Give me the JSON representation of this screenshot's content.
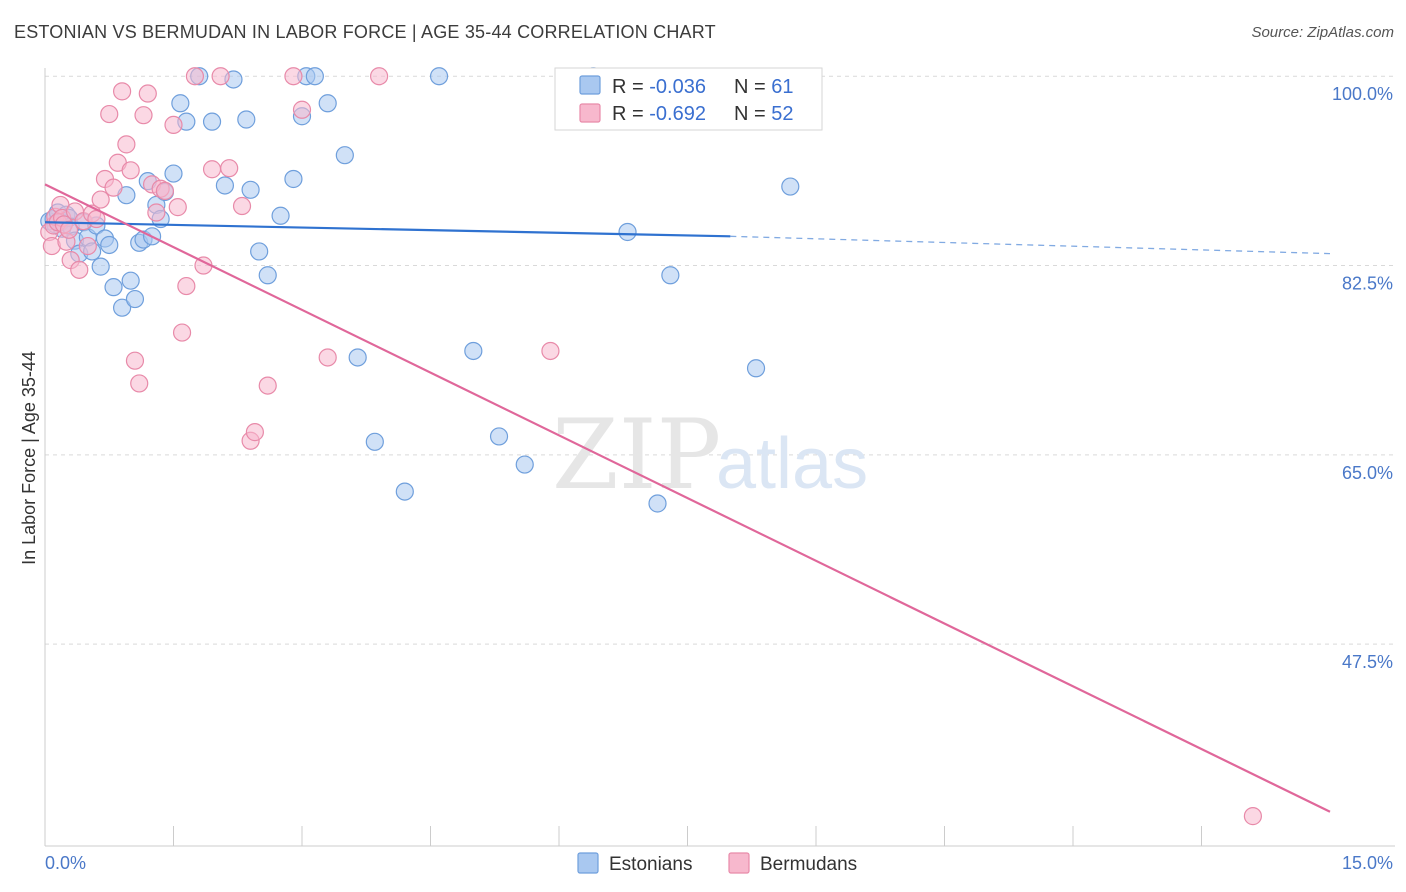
{
  "title": "ESTONIAN VS BERMUDAN IN LABOR FORCE | AGE 35-44 CORRELATION CHART",
  "source": "Source: ZipAtlas.com",
  "watermark": {
    "zip": "ZIP",
    "atlas": "atlas"
  },
  "colors": {
    "estonians_fill": "#a9c8f0",
    "estonians_stroke": "#6f9fdc",
    "estonians_line": "#2f72d0",
    "bermudans_fill": "#f7b8cd",
    "bermudans_stroke": "#e88aa9",
    "bermudans_line": "#e0679a",
    "tick_label": "#4a78c8",
    "grid": "#d9d9d9"
  },
  "legend": {
    "rows": [
      {
        "r_label": "R = ",
        "r_value": "-0.036",
        "n_label": "N = ",
        "n_value": "61"
      },
      {
        "r_label": "R = ",
        "r_value": "-0.692",
        "n_label": "N = ",
        "n_value": "52"
      }
    ]
  },
  "bottom_legend": [
    "Estonians",
    "Bermudans"
  ],
  "chart_data": {
    "type": "scatter",
    "xlabel": "",
    "ylabel": "In Labor Force | Age 35-44",
    "xlim": [
      0,
      15
    ],
    "ylim": [
      30.5,
      101.5
    ],
    "x_tick_labels": [
      {
        "value": 0,
        "label": "0.0%"
      },
      {
        "value": 15,
        "label": "15.0%"
      }
    ],
    "y_tick_labels": [
      {
        "value": 100,
        "label": "100.0%"
      },
      {
        "value": 82.5,
        "label": "82.5%"
      },
      {
        "value": 65,
        "label": "65.0%"
      },
      {
        "value": 47.5,
        "label": "47.5%"
      }
    ],
    "y_grid": [
      100,
      82.5,
      65,
      47.5
    ],
    "x_minor_ticks": [
      1.5,
      3,
      4.5,
      6,
      7.5,
      9,
      10.5,
      12,
      13.5
    ],
    "series": [
      {
        "name": "Estonians",
        "points": [
          [
            0.05,
            86.6
          ],
          [
            0.1,
            86.8
          ],
          [
            0.12,
            86.3
          ],
          [
            0.15,
            87.4
          ],
          [
            0.18,
            86.5
          ],
          [
            0.2,
            85.9
          ],
          [
            0.25,
            87.2
          ],
          [
            0.28,
            86.9
          ],
          [
            0.3,
            86.1
          ],
          [
            0.35,
            84.8
          ],
          [
            0.4,
            83.6
          ],
          [
            0.45,
            86.5
          ],
          [
            0.5,
            85.1
          ],
          [
            0.55,
            83.8
          ],
          [
            0.6,
            86.2
          ],
          [
            0.65,
            82.4
          ],
          [
            0.7,
            85.0
          ],
          [
            0.75,
            84.4
          ],
          [
            0.8,
            80.5
          ],
          [
            0.9,
            78.6
          ],
          [
            0.95,
            89.0
          ],
          [
            1.0,
            81.1
          ],
          [
            1.05,
            79.4
          ],
          [
            1.1,
            84.6
          ],
          [
            1.15,
            84.9
          ],
          [
            1.2,
            90.3
          ],
          [
            1.25,
            85.2
          ],
          [
            1.3,
            88.1
          ],
          [
            1.35,
            86.8
          ],
          [
            1.4,
            89.3
          ],
          [
            1.5,
            91.0
          ],
          [
            1.58,
            97.5
          ],
          [
            1.65,
            95.8
          ],
          [
            1.8,
            100.0
          ],
          [
            1.95,
            95.8
          ],
          [
            2.1,
            89.9
          ],
          [
            2.2,
            99.7
          ],
          [
            2.35,
            96.0
          ],
          [
            2.4,
            89.5
          ],
          [
            2.5,
            83.8
          ],
          [
            2.6,
            81.6
          ],
          [
            2.75,
            87.1
          ],
          [
            2.9,
            90.5
          ],
          [
            3.0,
            96.3
          ],
          [
            3.05,
            100.0
          ],
          [
            3.15,
            100.0
          ],
          [
            3.3,
            97.5
          ],
          [
            3.5,
            92.7
          ],
          [
            3.65,
            74.0
          ],
          [
            3.85,
            66.2
          ],
          [
            4.2,
            61.6
          ],
          [
            4.6,
            100.0
          ],
          [
            5.0,
            74.6
          ],
          [
            5.3,
            66.7
          ],
          [
            5.6,
            64.1
          ],
          [
            6.4,
            100.0
          ],
          [
            6.8,
            85.6
          ],
          [
            7.15,
            60.5
          ],
          [
            7.3,
            81.6
          ],
          [
            8.3,
            73.0
          ],
          [
            8.7,
            89.8
          ]
        ]
      },
      {
        "name": "Bermudans",
        "points": [
          [
            0.05,
            85.6
          ],
          [
            0.08,
            84.3
          ],
          [
            0.1,
            86.2
          ],
          [
            0.12,
            87.0
          ],
          [
            0.15,
            86.5
          ],
          [
            0.18,
            88.1
          ],
          [
            0.2,
            86.9
          ],
          [
            0.22,
            86.3
          ],
          [
            0.25,
            84.7
          ],
          [
            0.28,
            85.8
          ],
          [
            0.3,
            83.0
          ],
          [
            0.35,
            87.5
          ],
          [
            0.4,
            82.1
          ],
          [
            0.45,
            86.6
          ],
          [
            0.5,
            84.3
          ],
          [
            0.55,
            87.3
          ],
          [
            0.6,
            86.8
          ],
          [
            0.65,
            88.6
          ],
          [
            0.7,
            90.5
          ],
          [
            0.75,
            96.5
          ],
          [
            0.8,
            89.7
          ],
          [
            0.85,
            92.0
          ],
          [
            0.9,
            98.6
          ],
          [
            0.95,
            93.7
          ],
          [
            1.0,
            91.3
          ],
          [
            1.05,
            73.7
          ],
          [
            1.1,
            71.6
          ],
          [
            1.15,
            96.4
          ],
          [
            1.2,
            98.4
          ],
          [
            1.25,
            90.0
          ],
          [
            1.3,
            87.4
          ],
          [
            1.35,
            89.6
          ],
          [
            1.4,
            89.4
          ],
          [
            1.5,
            95.5
          ],
          [
            1.55,
            87.9
          ],
          [
            1.6,
            76.3
          ],
          [
            1.65,
            80.6
          ],
          [
            1.75,
            100.0
          ],
          [
            1.85,
            82.5
          ],
          [
            1.95,
            91.4
          ],
          [
            2.05,
            100.0
          ],
          [
            2.15,
            91.5
          ],
          [
            2.3,
            88.0
          ],
          [
            2.4,
            66.3
          ],
          [
            2.45,
            67.1
          ],
          [
            2.6,
            71.4
          ],
          [
            2.9,
            100.0
          ],
          [
            3.0,
            96.9
          ],
          [
            3.3,
            74.0
          ],
          [
            3.9,
            100.0
          ],
          [
            5.9,
            74.6
          ],
          [
            14.1,
            31.6
          ]
        ]
      }
    ],
    "trend_lines": [
      {
        "series": "Estonians",
        "x": [
          0,
          8.0
        ],
        "y": [
          86.5,
          85.2
        ],
        "dashed_extension_to": 15,
        "dashed_y_end": 83.6
      },
      {
        "series": "Bermudans",
        "x": [
          0,
          15
        ],
        "y": [
          90.0,
          32.0
        ]
      }
    ]
  }
}
